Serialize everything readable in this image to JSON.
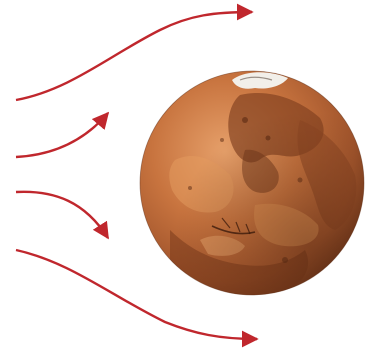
{
  "figure": {
    "planet": {
      "icon": "mars-planet-icon",
      "base_color": "#c8743f",
      "shadow_color": "#7a3e20",
      "highlight_color": "#e8a36a"
    },
    "flow_lines": {
      "icon": "arrow-curve-icon",
      "color": "#c0272d",
      "count": 4
    }
  }
}
